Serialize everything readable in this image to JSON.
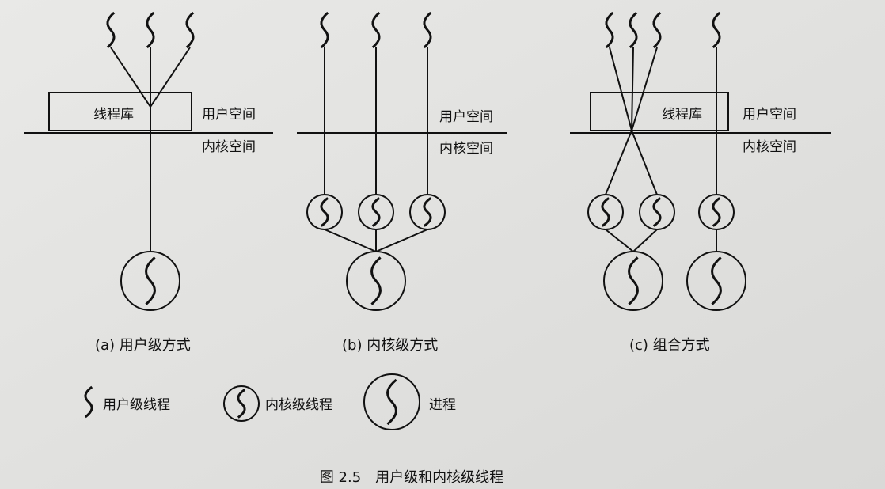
{
  "panels": [
    {
      "caption": "(a) 用户级方式",
      "library": "线程库",
      "user_space": "用户空间",
      "kernel_space": "内核空间"
    },
    {
      "caption": "(b) 内核级方式",
      "user_space": "用户空间",
      "kernel_space": "内核空间"
    },
    {
      "caption": "(c) 组合方式",
      "library": "线程库",
      "user_space": "用户空间",
      "kernel_space": "内核空间"
    }
  ],
  "legend": [
    {
      "label": "用户级线程"
    },
    {
      "label": "内核级线程"
    },
    {
      "label": "进程"
    }
  ],
  "figure_caption": "图 2.5　用户级和内核级线程"
}
